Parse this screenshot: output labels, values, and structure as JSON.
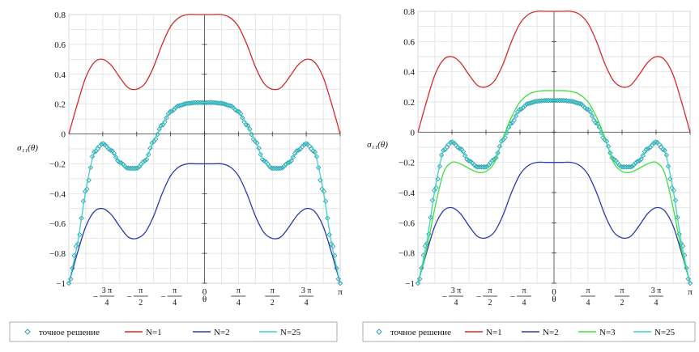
{
  "chart_data": [
    {
      "type": "line",
      "xlabel": "θ",
      "ylabel": "σ₁₁(θ)",
      "xlim": [
        -3.14159,
        3.14159
      ],
      "ylim": [
        -1,
        0.8
      ],
      "grid": true,
      "legend_position": "bottom",
      "xticks": [
        {
          "value": -2.35619,
          "label": "−3π/4"
        },
        {
          "value": -1.5708,
          "label": "−π/2"
        },
        {
          "value": -0.785398,
          "label": "−π/4"
        },
        {
          "value": 0,
          "label": "0"
        },
        {
          "value": 0.785398,
          "label": "π/4"
        },
        {
          "value": 1.5708,
          "label": "π/2"
        },
        {
          "value": 2.35619,
          "label": "3π/4"
        },
        {
          "value": 3.14159,
          "label": "π"
        }
      ],
      "yticks": [
        {
          "value": 0.8,
          "label": "0.8"
        },
        {
          "value": 0.6,
          "label": "0.6"
        },
        {
          "value": 0.4,
          "label": "0.4"
        },
        {
          "value": 0.2,
          "label": "0.2"
        },
        {
          "value": 0,
          "label": "0"
        },
        {
          "value": -0.2,
          "label": "−0.2"
        },
        {
          "value": -0.4,
          "label": "−0.4"
        },
        {
          "value": -0.6,
          "label": "−0.6"
        },
        {
          "value": -0.8,
          "label": "−0.8"
        },
        {
          "value": -1,
          "label": "−1"
        }
      ],
      "series": [
        {
          "name": "точное решение",
          "color": "#2aa0b2",
          "style": "diamonds",
          "x": [
            -3.1416,
            -2.9452,
            -2.7489,
            -2.5525,
            -2.3562,
            -2.1598,
            -1.9635,
            -1.7671,
            -1.5708,
            -1.3744,
            -1.1781,
            -0.9817,
            -0.7854,
            -0.589,
            -0.3927,
            -0.1963,
            0,
            0.1963,
            0.3927,
            0.589,
            0.7854,
            0.9817,
            1.1781,
            1.3744,
            1.5708,
            1.7671,
            1.9635,
            2.1598,
            2.3562,
            2.5525,
            2.7489,
            2.9452,
            3.1416
          ],
          "y": [
            -1,
            -0.74,
            -0.38,
            -0.12,
            -0.065,
            -0.11,
            -0.19,
            -0.23,
            -0.23,
            -0.18,
            -0.05,
            0.06,
            0.15,
            0.19,
            0.205,
            0.21,
            0.21,
            0.21,
            0.205,
            0.19,
            0.15,
            0.06,
            -0.05,
            -0.18,
            -0.23,
            -0.23,
            -0.19,
            -0.11,
            -0.065,
            -0.12,
            -0.38,
            -0.74,
            -1
          ]
        },
        {
          "name": "N=1",
          "color": "#d42a2a",
          "style": "line",
          "x": [
            -3.1416,
            -2.9452,
            -2.7489,
            -2.5525,
            -2.3562,
            -2.1598,
            -1.9635,
            -1.7671,
            -1.5708,
            -1.3744,
            -1.1781,
            -0.9817,
            -0.7854,
            -0.589,
            -0.3927,
            -0.1963,
            0,
            0.1963,
            0.3927,
            0.589,
            0.7854,
            0.9817,
            1.1781,
            1.3744,
            1.5708,
            1.7671,
            1.9635,
            2.1598,
            2.3562,
            2.5525,
            2.7489,
            2.9452,
            3.1416
          ],
          "y": [
            0,
            0.2,
            0.38,
            0.48,
            0.5,
            0.46,
            0.38,
            0.31,
            0.3,
            0.34,
            0.45,
            0.6,
            0.72,
            0.78,
            0.8,
            0.8,
            0.8,
            0.8,
            0.8,
            0.78,
            0.72,
            0.6,
            0.45,
            0.34,
            0.3,
            0.31,
            0.38,
            0.46,
            0.5,
            0.48,
            0.38,
            0.2,
            0
          ]
        },
        {
          "name": "N=2",
          "color": "#2a3aa8",
          "style": "line",
          "x": [
            -3.1416,
            -2.9452,
            -2.7489,
            -2.5525,
            -2.3562,
            -2.1598,
            -1.9635,
            -1.7671,
            -1.5708,
            -1.3744,
            -1.1781,
            -0.9817,
            -0.7854,
            -0.589,
            -0.3927,
            -0.1963,
            0,
            0.1963,
            0.3927,
            0.589,
            0.7854,
            0.9817,
            1.1781,
            1.3744,
            1.5708,
            1.7671,
            1.9635,
            2.1598,
            2.3562,
            2.5525,
            2.7489,
            2.9452,
            3.1416
          ],
          "y": [
            -1,
            -0.8,
            -0.62,
            -0.52,
            -0.5,
            -0.54,
            -0.62,
            -0.69,
            -0.7,
            -0.66,
            -0.55,
            -0.4,
            -0.28,
            -0.22,
            -0.2,
            -0.2,
            -0.2,
            -0.2,
            -0.2,
            -0.22,
            -0.28,
            -0.4,
            -0.55,
            -0.66,
            -0.7,
            -0.69,
            -0.62,
            -0.54,
            -0.5,
            -0.52,
            -0.62,
            -0.8,
            -1
          ]
        },
        {
          "name": "N=25",
          "color": "#40d0c8",
          "style": "line",
          "x": [
            -3.1416,
            -2.9452,
            -2.7489,
            -2.5525,
            -2.3562,
            -2.1598,
            -1.9635,
            -1.7671,
            -1.5708,
            -1.3744,
            -1.1781,
            -0.9817,
            -0.7854,
            -0.589,
            -0.3927,
            -0.1963,
            0,
            0.1963,
            0.3927,
            0.589,
            0.7854,
            0.9817,
            1.1781,
            1.3744,
            1.5708,
            1.7671,
            1.9635,
            2.1598,
            2.3562,
            2.5525,
            2.7489,
            2.9452,
            3.1416
          ],
          "y": [
            -1,
            -0.74,
            -0.38,
            -0.12,
            -0.065,
            -0.11,
            -0.19,
            -0.23,
            -0.23,
            -0.18,
            -0.05,
            0.06,
            0.15,
            0.19,
            0.205,
            0.21,
            0.21,
            0.21,
            0.205,
            0.19,
            0.15,
            0.06,
            -0.05,
            -0.18,
            -0.23,
            -0.23,
            -0.19,
            -0.11,
            -0.065,
            -0.12,
            -0.38,
            -0.74,
            -1
          ]
        }
      ]
    },
    {
      "type": "line",
      "xlabel": "θ",
      "ylabel": "σ₁₁(θ)",
      "xlim": [
        -3.14159,
        3.14159
      ],
      "ylim": [
        -1,
        0.8
      ],
      "grid": true,
      "legend_position": "bottom",
      "xticks": [
        {
          "value": -2.35619,
          "label": "−3π/4"
        },
        {
          "value": -1.5708,
          "label": "−π/2"
        },
        {
          "value": -0.785398,
          "label": "−π/4"
        },
        {
          "value": 0,
          "label": "0"
        },
        {
          "value": 0.785398,
          "label": "π/4"
        },
        {
          "value": 1.5708,
          "label": "π/2"
        },
        {
          "value": 2.35619,
          "label": "3π/4"
        },
        {
          "value": 3.14159,
          "label": "π"
        }
      ],
      "yticks": [
        {
          "value": 0.8,
          "label": "0.8"
        },
        {
          "value": 0.6,
          "label": "0.6"
        },
        {
          "value": 0.4,
          "label": "0.4"
        },
        {
          "value": 0.2,
          "label": "0.2"
        },
        {
          "value": 0,
          "label": "0"
        },
        {
          "value": -0.2,
          "label": "−0.2"
        },
        {
          "value": -0.4,
          "label": "−0.4"
        },
        {
          "value": -0.6,
          "label": "−0.6"
        },
        {
          "value": -0.8,
          "label": "−0.8"
        },
        {
          "value": -1,
          "label": "−1"
        }
      ],
      "series": [
        {
          "name": "точное решение",
          "color": "#2aa0b2",
          "style": "diamonds",
          "x": [
            -3.1416,
            -2.9452,
            -2.7489,
            -2.5525,
            -2.3562,
            -2.1598,
            -1.9635,
            -1.7671,
            -1.5708,
            -1.3744,
            -1.1781,
            -0.9817,
            -0.7854,
            -0.589,
            -0.3927,
            -0.1963,
            0,
            0.1963,
            0.3927,
            0.589,
            0.7854,
            0.9817,
            1.1781,
            1.3744,
            1.5708,
            1.7671,
            1.9635,
            2.1598,
            2.3562,
            2.5525,
            2.7489,
            2.9452,
            3.1416
          ],
          "y": [
            -1,
            -0.74,
            -0.38,
            -0.12,
            -0.065,
            -0.11,
            -0.19,
            -0.23,
            -0.23,
            -0.18,
            -0.05,
            0.06,
            0.15,
            0.19,
            0.205,
            0.21,
            0.21,
            0.21,
            0.205,
            0.19,
            0.15,
            0.06,
            -0.05,
            -0.18,
            -0.23,
            -0.23,
            -0.19,
            -0.11,
            -0.065,
            -0.12,
            -0.38,
            -0.74,
            -1
          ]
        },
        {
          "name": "N=1",
          "color": "#d42a2a",
          "style": "line",
          "x": [
            -3.1416,
            -2.9452,
            -2.7489,
            -2.5525,
            -2.3562,
            -2.1598,
            -1.9635,
            -1.7671,
            -1.5708,
            -1.3744,
            -1.1781,
            -0.9817,
            -0.7854,
            -0.589,
            -0.3927,
            -0.1963,
            0,
            0.1963,
            0.3927,
            0.589,
            0.7854,
            0.9817,
            1.1781,
            1.3744,
            1.5708,
            1.7671,
            1.9635,
            2.1598,
            2.3562,
            2.5525,
            2.7489,
            2.9452,
            3.1416
          ],
          "y": [
            0,
            0.2,
            0.38,
            0.48,
            0.5,
            0.46,
            0.38,
            0.31,
            0.3,
            0.34,
            0.45,
            0.6,
            0.72,
            0.78,
            0.8,
            0.8,
            0.8,
            0.8,
            0.8,
            0.78,
            0.72,
            0.6,
            0.45,
            0.34,
            0.3,
            0.31,
            0.38,
            0.46,
            0.5,
            0.48,
            0.38,
            0.2,
            0
          ]
        },
        {
          "name": "N=2",
          "color": "#2a3aa8",
          "style": "line",
          "x": [
            -3.1416,
            -2.9452,
            -2.7489,
            -2.5525,
            -2.3562,
            -2.1598,
            -1.9635,
            -1.7671,
            -1.5708,
            -1.3744,
            -1.1781,
            -0.9817,
            -0.7854,
            -0.589,
            -0.3927,
            -0.1963,
            0,
            0.1963,
            0.3927,
            0.589,
            0.7854,
            0.9817,
            1.1781,
            1.3744,
            1.5708,
            1.7671,
            1.9635,
            2.1598,
            2.3562,
            2.5525,
            2.7489,
            2.9452,
            3.1416
          ],
          "y": [
            -1,
            -0.8,
            -0.62,
            -0.52,
            -0.5,
            -0.54,
            -0.62,
            -0.69,
            -0.7,
            -0.66,
            -0.55,
            -0.4,
            -0.28,
            -0.22,
            -0.2,
            -0.2,
            -0.2,
            -0.2,
            -0.2,
            -0.22,
            -0.28,
            -0.4,
            -0.55,
            -0.66,
            -0.7,
            -0.69,
            -0.62,
            -0.54,
            -0.5,
            -0.52,
            -0.62,
            -0.8,
            -1
          ]
        },
        {
          "name": "N=3",
          "color": "#3ee03e",
          "style": "line",
          "x": [
            -3.1416,
            -2.9452,
            -2.7489,
            -2.5525,
            -2.3562,
            -2.1598,
            -1.9635,
            -1.7671,
            -1.5708,
            -1.3744,
            -1.1781,
            -0.9817,
            -0.7854,
            -0.589,
            -0.3927,
            -0.1963,
            0,
            0.1963,
            0.3927,
            0.589,
            0.7854,
            0.9817,
            1.1781,
            1.3744,
            1.5708,
            1.7671,
            1.9635,
            2.1598,
            2.3562,
            2.5525,
            2.7489,
            2.9452,
            3.1416
          ],
          "y": [
            -1,
            -0.78,
            -0.5,
            -0.27,
            -0.2,
            -0.21,
            -0.24,
            -0.265,
            -0.26,
            -0.2,
            -0.04,
            0.1,
            0.2,
            0.25,
            0.27,
            0.275,
            0.275,
            0.275,
            0.27,
            0.25,
            0.2,
            0.1,
            -0.04,
            -0.2,
            -0.26,
            -0.265,
            -0.24,
            -0.21,
            -0.2,
            -0.27,
            -0.5,
            -0.78,
            -1
          ]
        },
        {
          "name": "N=25",
          "color": "#40d0c8",
          "style": "line",
          "x": [
            -3.1416,
            -2.9452,
            -2.7489,
            -2.5525,
            -2.3562,
            -2.1598,
            -1.9635,
            -1.7671,
            -1.5708,
            -1.3744,
            -1.1781,
            -0.9817,
            -0.7854,
            -0.589,
            -0.3927,
            -0.1963,
            0,
            0.1963,
            0.3927,
            0.589,
            0.7854,
            0.9817,
            1.1781,
            1.3744,
            1.5708,
            1.7671,
            1.9635,
            2.1598,
            2.3562,
            2.5525,
            2.7489,
            2.9452,
            3.1416
          ],
          "y": [
            -1,
            -0.74,
            -0.38,
            -0.12,
            -0.065,
            -0.11,
            -0.19,
            -0.23,
            -0.23,
            -0.18,
            -0.05,
            0.06,
            0.15,
            0.19,
            0.205,
            0.21,
            0.21,
            0.21,
            0.205,
            0.19,
            0.15,
            0.06,
            -0.05,
            -0.18,
            -0.23,
            -0.23,
            -0.19,
            -0.11,
            -0.065,
            -0.12,
            -0.38,
            -0.74,
            -1
          ]
        }
      ]
    }
  ]
}
